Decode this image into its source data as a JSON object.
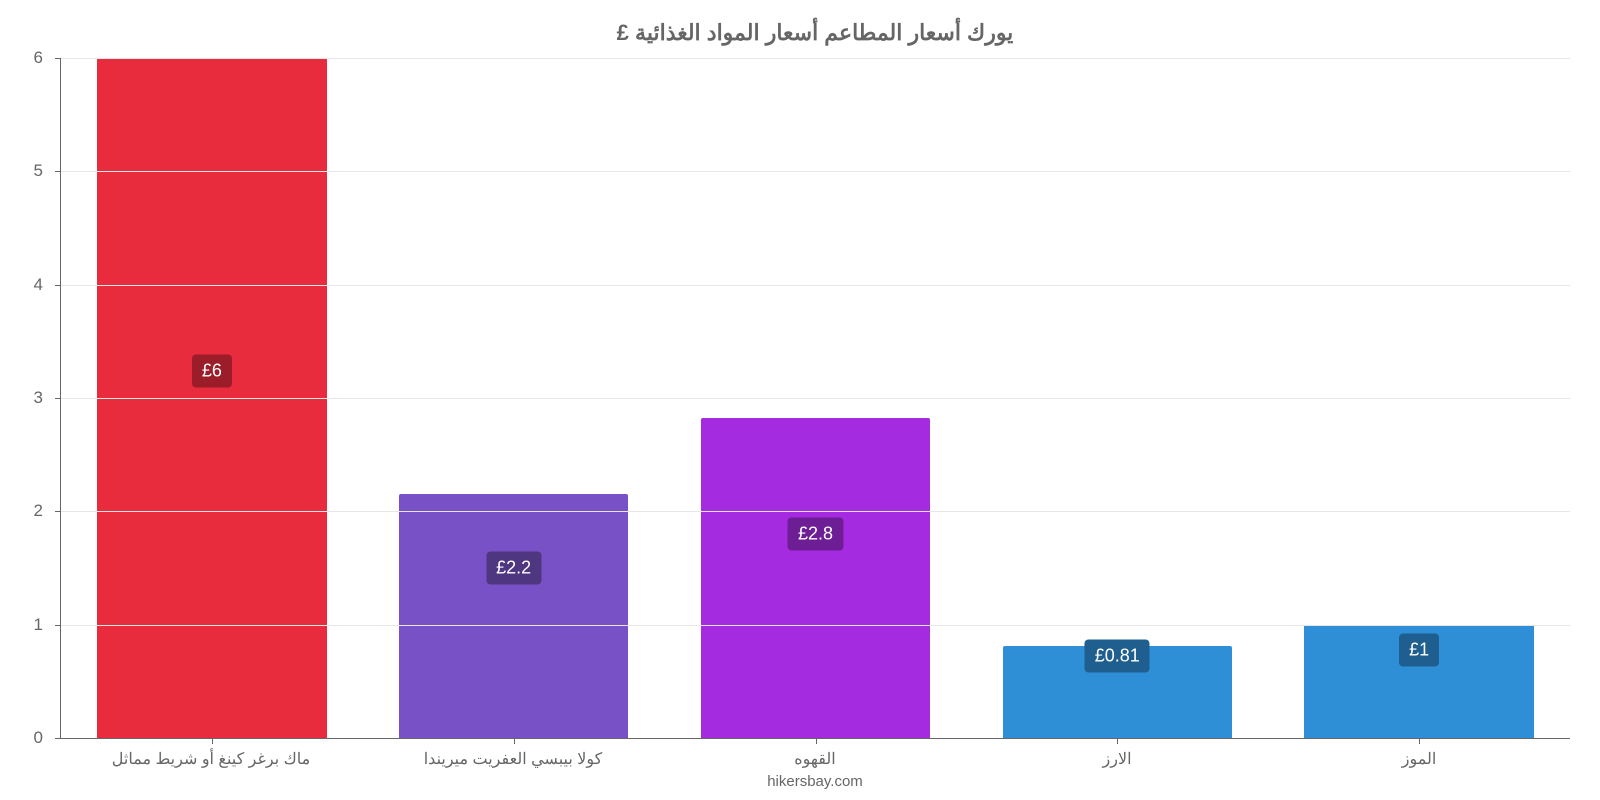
{
  "chart": {
    "type": "bar",
    "title": "يورك أسعار المطاعم أسعار المواد الغذائية £",
    "title_color": "#666666",
    "title_fontsize": 22,
    "background_color": "#ffffff",
    "axis_color": "#666666",
    "grid_color": "#e6e6e6",
    "label_color": "#666666",
    "label_fontsize": 16,
    "ylim": [
      0,
      6
    ],
    "yticks": [
      0,
      1,
      2,
      3,
      4,
      5,
      6
    ],
    "bar_width_ratio": 0.76,
    "attribution": "hikersbay.com",
    "bars": [
      {
        "category": "ماك برغر كينغ أو شريط مماثل",
        "value": 6,
        "label": "£6",
        "bar_color": "#e82c3d",
        "tag_bg": "#9a1d29",
        "tag_top_pct": 46
      },
      {
        "category": "كولا بيبسي العفريت ميريندا",
        "value": 2.15,
        "label": "£2.2",
        "bar_color": "#7951c6",
        "tag_bg": "#4f3680",
        "tag_top_pct": 75
      },
      {
        "category": "القهوه",
        "value": 2.82,
        "label": "£2.8",
        "bar_color": "#a52be0",
        "tag_bg": "#6e1e95",
        "tag_top_pct": 70
      },
      {
        "category": "الارز",
        "value": 0.81,
        "label": "£0.81",
        "bar_color": "#2e8fd7",
        "tag_bg": "#1f5f8f",
        "tag_top_pct": 88
      },
      {
        "category": "الموز",
        "value": 1.0,
        "label": "£1",
        "bar_color": "#2e8fd7",
        "tag_bg": "#1f5f8f",
        "tag_top_pct": 87
      }
    ]
  }
}
